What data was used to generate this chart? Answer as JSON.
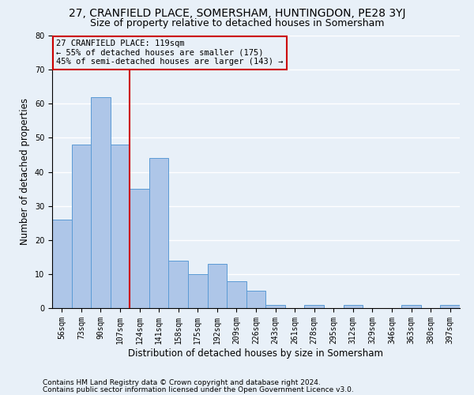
{
  "title": "27, CRANFIELD PLACE, SOMERSHAM, HUNTINGDON, PE28 3YJ",
  "subtitle": "Size of property relative to detached houses in Somersham",
  "xlabel": "Distribution of detached houses by size in Somersham",
  "ylabel": "Number of detached properties",
  "bar_values": [
    26,
    48,
    62,
    48,
    35,
    44,
    14,
    10,
    13,
    8,
    5,
    1,
    0,
    1,
    0,
    1,
    0,
    0,
    1,
    0,
    1
  ],
  "bin_labels": [
    "56sqm",
    "73sqm",
    "90sqm",
    "107sqm",
    "124sqm",
    "141sqm",
    "158sqm",
    "175sqm",
    "192sqm",
    "209sqm",
    "226sqm",
    "243sqm",
    "261sqm",
    "278sqm",
    "295sqm",
    "312sqm",
    "329sqm",
    "346sqm",
    "363sqm",
    "380sqm",
    "397sqm"
  ],
  "bar_color": "#aec6e8",
  "bar_edge_color": "#5b9bd5",
  "background_color": "#e8f0f8",
  "grid_color": "#ffffff",
  "vline_x_index": 3.5,
  "vline_color": "#cc0000",
  "annotation_text": "27 CRANFIELD PLACE: 119sqm\n← 55% of detached houses are smaller (175)\n45% of semi-detached houses are larger (143) →",
  "annotation_box_color": "#cc0000",
  "footer1": "Contains HM Land Registry data © Crown copyright and database right 2024.",
  "footer2": "Contains public sector information licensed under the Open Government Licence v3.0.",
  "ylim": [
    0,
    80
  ],
  "yticks": [
    0,
    10,
    20,
    30,
    40,
    50,
    60,
    70,
    80
  ],
  "title_fontsize": 10,
  "subtitle_fontsize": 9,
  "xlabel_fontsize": 8.5,
  "ylabel_fontsize": 8.5,
  "tick_fontsize": 7,
  "footer_fontsize": 6.5,
  "ann_fontsize": 7.5
}
